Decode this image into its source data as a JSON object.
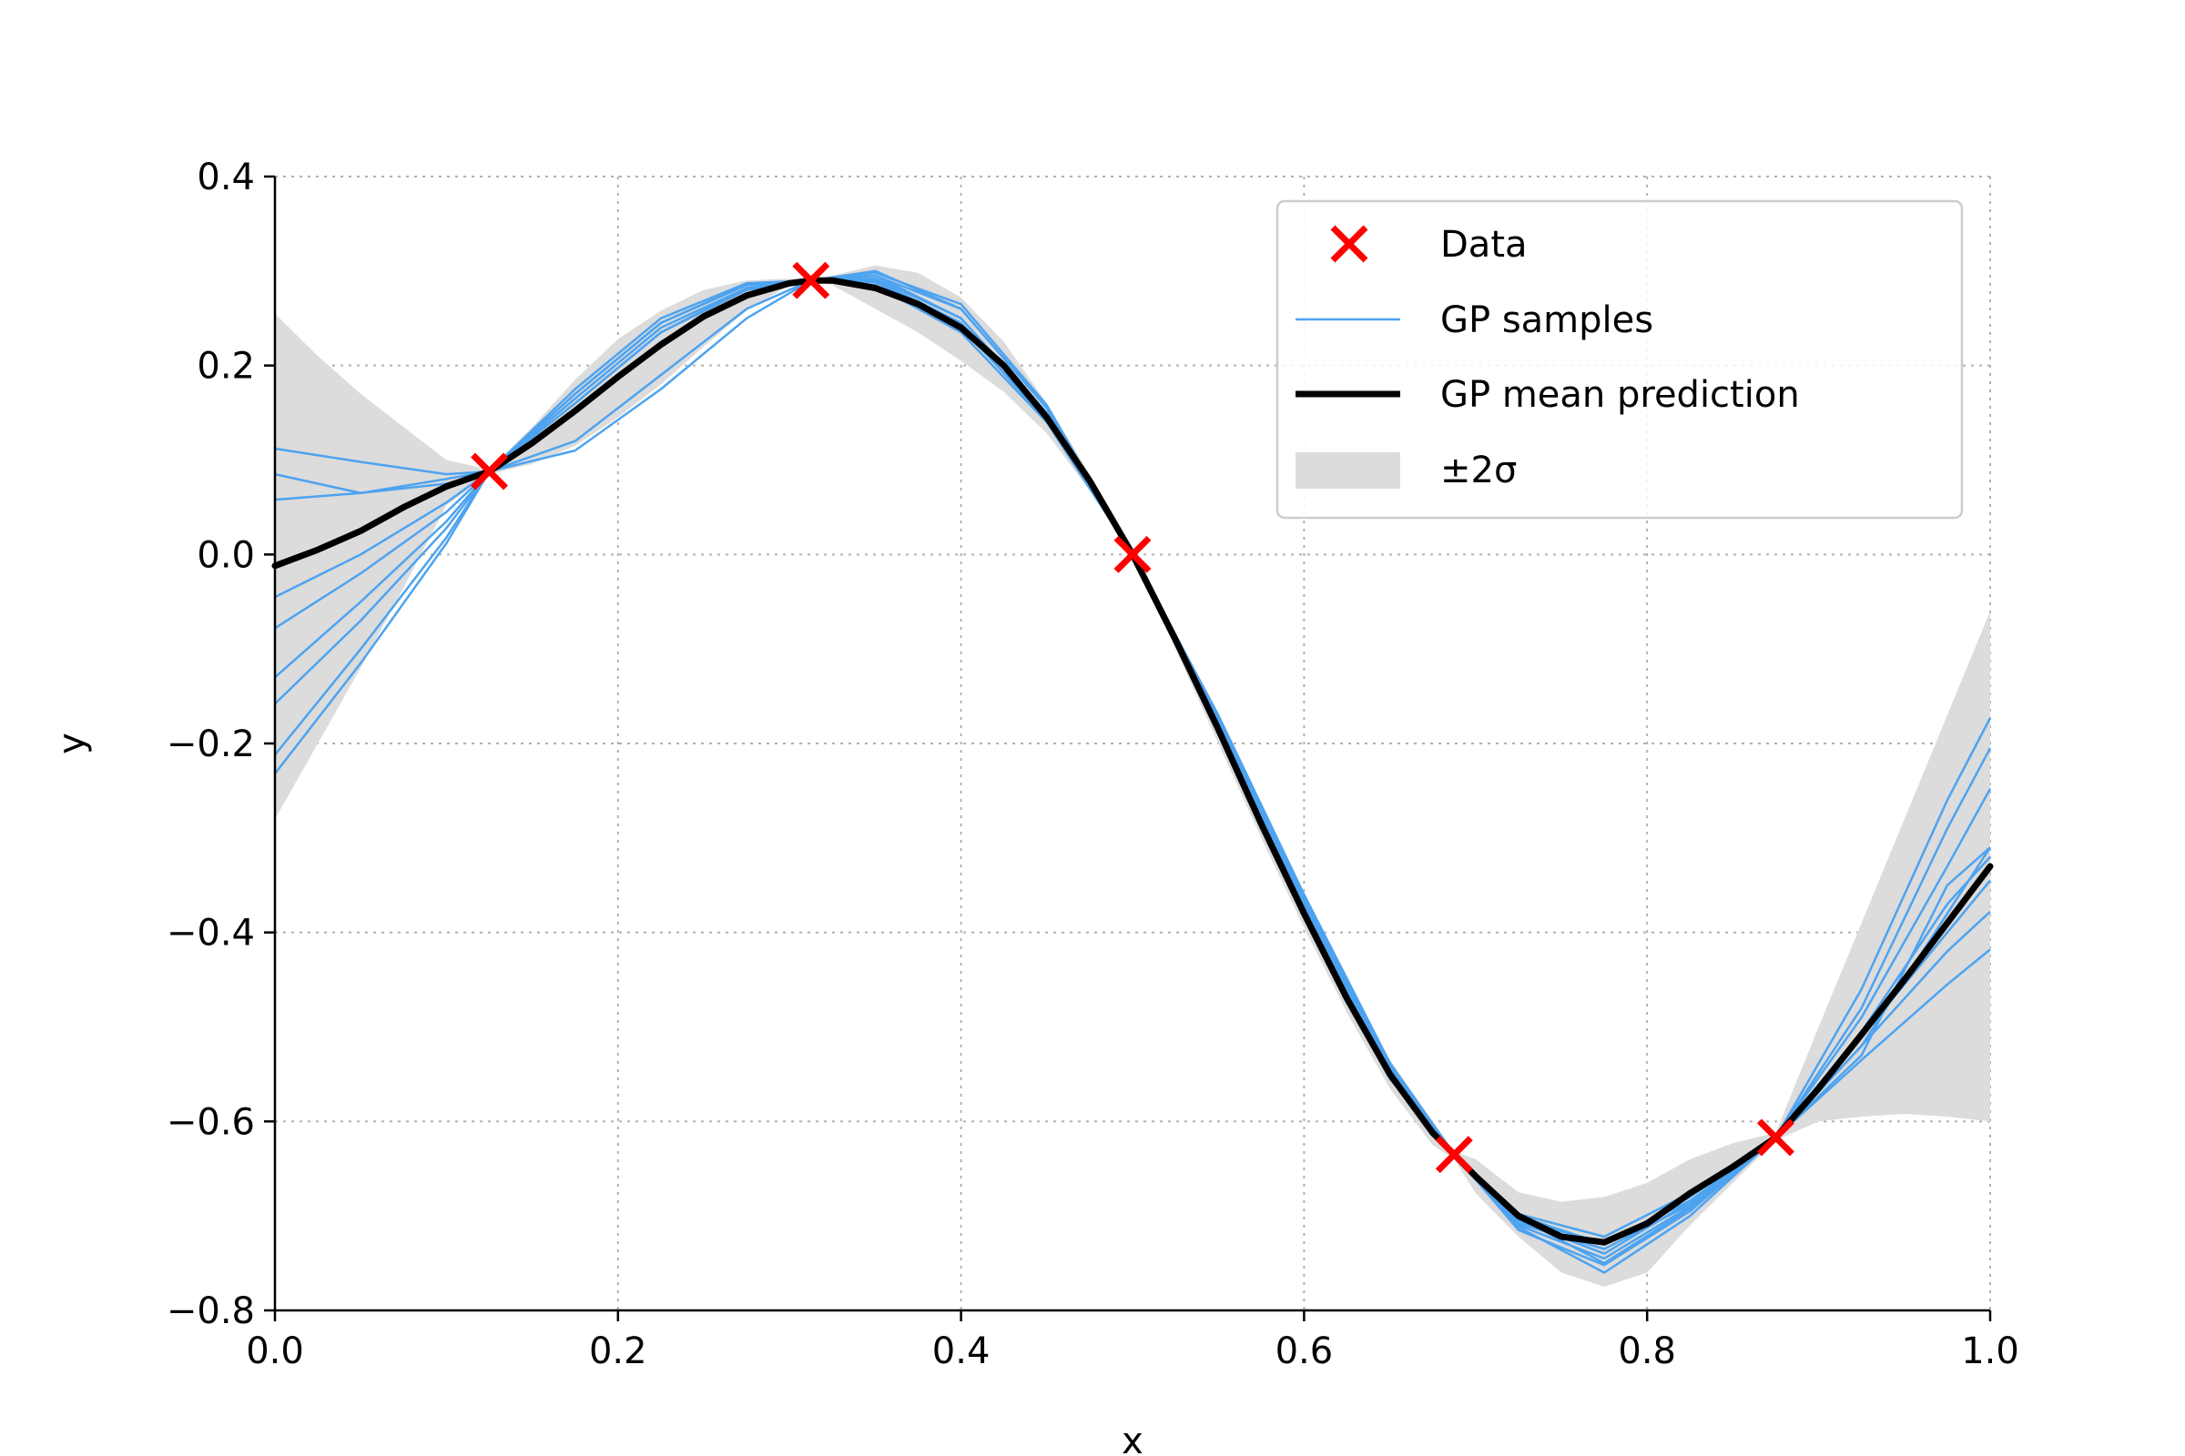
{
  "chart_data": {
    "type": "line",
    "xlabel": "x",
    "ylabel": "y",
    "xlim": [
      0.0,
      1.0
    ],
    "ylim": [
      -0.8,
      0.4
    ],
    "xticks": [
      0.0,
      0.2,
      0.4,
      0.6,
      0.8,
      1.0
    ],
    "xtick_labels": [
      "0.0",
      "0.2",
      "0.4",
      "0.6",
      "0.8",
      "1.0"
    ],
    "yticks": [
      -0.8,
      -0.6,
      -0.4,
      -0.2,
      0.0,
      0.2,
      0.4
    ],
    "ytick_labels": [
      "−0.8",
      "−0.6",
      "−0.4",
      "−0.2",
      "0.0",
      "0.2",
      "0.4"
    ],
    "grid": true,
    "legend_position": "top-right",
    "legend": {
      "data": "Data",
      "samples": "GP samples",
      "mean": "GP mean prediction",
      "band": "±2σ"
    },
    "colors": {
      "data": "#ff0000",
      "samples": "#4da3f0",
      "mean": "#000000",
      "band": "#dcdcdc",
      "grid": "#b0b0b0"
    },
    "data_points": [
      {
        "x": 0.125,
        "y": 0.088
      },
      {
        "x": 0.3125,
        "y": 0.29
      },
      {
        "x": 0.5,
        "y": 0.0
      },
      {
        "x": 0.6875,
        "y": -0.635
      },
      {
        "x": 0.875,
        "y": -0.617
      }
    ],
    "mean": {
      "x": [
        0.0,
        0.025,
        0.05,
        0.075,
        0.1,
        0.125,
        0.15,
        0.175,
        0.2,
        0.225,
        0.25,
        0.275,
        0.3,
        0.3125,
        0.325,
        0.35,
        0.375,
        0.4,
        0.425,
        0.45,
        0.475,
        0.5,
        0.525,
        0.55,
        0.575,
        0.6,
        0.625,
        0.65,
        0.675,
        0.6875,
        0.7,
        0.725,
        0.75,
        0.775,
        0.8,
        0.825,
        0.85,
        0.875,
        0.9,
        0.925,
        0.95,
        0.975,
        1.0
      ],
      "y": [
        -0.012,
        0.005,
        0.025,
        0.05,
        0.072,
        0.088,
        0.118,
        0.152,
        0.188,
        0.222,
        0.252,
        0.274,
        0.287,
        0.29,
        0.29,
        0.282,
        0.265,
        0.24,
        0.2,
        0.145,
        0.078,
        0.0,
        -0.09,
        -0.185,
        -0.285,
        -0.38,
        -0.47,
        -0.55,
        -0.612,
        -0.635,
        -0.658,
        -0.7,
        -0.722,
        -0.728,
        -0.708,
        -0.676,
        -0.648,
        -0.617,
        -0.565,
        -0.508,
        -0.45,
        -0.39,
        -0.33
      ]
    },
    "band": {
      "x": [
        0.0,
        0.025,
        0.05,
        0.075,
        0.1,
        0.125,
        0.15,
        0.175,
        0.2,
        0.225,
        0.25,
        0.275,
        0.3,
        0.3125,
        0.325,
        0.35,
        0.375,
        0.4,
        0.425,
        0.45,
        0.475,
        0.5,
        0.525,
        0.55,
        0.575,
        0.6,
        0.625,
        0.65,
        0.675,
        0.6875,
        0.7,
        0.725,
        0.75,
        0.775,
        0.8,
        0.825,
        0.85,
        0.875,
        0.9,
        0.925,
        0.95,
        0.975,
        1.0
      ],
      "upper": [
        0.255,
        0.21,
        0.17,
        0.135,
        0.1,
        0.09,
        0.135,
        0.185,
        0.228,
        0.258,
        0.28,
        0.29,
        0.292,
        0.29,
        0.295,
        0.306,
        0.298,
        0.272,
        0.225,
        0.16,
        0.085,
        0.0,
        -0.082,
        -0.175,
        -0.272,
        -0.367,
        -0.455,
        -0.535,
        -0.6,
        -0.632,
        -0.64,
        -0.675,
        -0.685,
        -0.68,
        -0.665,
        -0.64,
        -0.623,
        -0.612,
        -0.5,
        -0.39,
        -0.28,
        -0.17,
        -0.06
      ],
      "lower": [
        -0.28,
        -0.2,
        -0.12,
        -0.035,
        0.052,
        0.085,
        0.096,
        0.115,
        0.145,
        0.18,
        0.22,
        0.258,
        0.285,
        0.29,
        0.285,
        0.26,
        0.235,
        0.205,
        0.172,
        0.128,
        0.068,
        0.0,
        -0.1,
        -0.2,
        -0.3,
        -0.395,
        -0.485,
        -0.565,
        -0.625,
        -0.64,
        -0.676,
        -0.722,
        -0.76,
        -0.775,
        -0.76,
        -0.71,
        -0.665,
        -0.62,
        -0.6,
        -0.595,
        -0.592,
        -0.595,
        -0.6
      ]
    },
    "samples": [
      {
        "x": [
          0.0,
          0.05,
          0.1,
          0.125,
          0.175,
          0.225,
          0.275,
          0.3125,
          0.35,
          0.4,
          0.45,
          0.5,
          0.55,
          0.6,
          0.65,
          0.6875,
          0.725,
          0.775,
          0.825,
          0.875,
          0.925,
          0.975,
          1.0
        ],
        "y": [
          0.112,
          0.098,
          0.085,
          0.088,
          0.17,
          0.245,
          0.285,
          0.29,
          0.295,
          0.25,
          0.15,
          0.0,
          -0.18,
          -0.37,
          -0.545,
          -0.635,
          -0.705,
          -0.74,
          -0.685,
          -0.617,
          -0.52,
          -0.38,
          -0.31
        ]
      },
      {
        "x": [
          0.0,
          0.05,
          0.1,
          0.125,
          0.175,
          0.225,
          0.275,
          0.3125,
          0.35,
          0.4,
          0.45,
          0.5,
          0.55,
          0.6,
          0.65,
          0.6875,
          0.725,
          0.775,
          0.825,
          0.875,
          0.925,
          0.975,
          1.0
        ],
        "y": [
          0.085,
          0.065,
          0.075,
          0.088,
          0.165,
          0.24,
          0.282,
          0.29,
          0.29,
          0.245,
          0.148,
          0.0,
          -0.182,
          -0.372,
          -0.548,
          -0.635,
          -0.71,
          -0.745,
          -0.69,
          -0.617,
          -0.535,
          -0.455,
          -0.418
        ]
      },
      {
        "x": [
          0.0,
          0.05,
          0.1,
          0.125,
          0.175,
          0.225,
          0.275,
          0.3125,
          0.35,
          0.4,
          0.45,
          0.5,
          0.55,
          0.6,
          0.65,
          0.6875,
          0.725,
          0.775,
          0.825,
          0.875,
          0.925,
          0.975,
          1.0
        ],
        "y": [
          0.058,
          0.065,
          0.08,
          0.088,
          0.16,
          0.235,
          0.28,
          0.29,
          0.3,
          0.26,
          0.155,
          0.0,
          -0.19,
          -0.38,
          -0.555,
          -0.635,
          -0.715,
          -0.752,
          -0.695,
          -0.617,
          -0.52,
          -0.42,
          -0.378
        ]
      },
      {
        "x": [
          0.0,
          0.05,
          0.1,
          0.125,
          0.175,
          0.225,
          0.275,
          0.3125,
          0.35,
          0.4,
          0.45,
          0.5,
          0.55,
          0.6,
          0.65,
          0.6875,
          0.725,
          0.775,
          0.825,
          0.875,
          0.925,
          0.975,
          1.0
        ],
        "y": [
          -0.045,
          0.0,
          0.055,
          0.088,
          0.15,
          0.225,
          0.275,
          0.29,
          0.29,
          0.24,
          0.145,
          0.0,
          -0.175,
          -0.365,
          -0.54,
          -0.635,
          -0.7,
          -0.73,
          -0.68,
          -0.617,
          -0.49,
          -0.33,
          -0.248
        ]
      },
      {
        "x": [
          0.0,
          0.05,
          0.1,
          0.125,
          0.175,
          0.225,
          0.275,
          0.3125,
          0.35,
          0.4,
          0.45,
          0.5,
          0.55,
          0.6,
          0.65,
          0.6875,
          0.725,
          0.775,
          0.825,
          0.875,
          0.925,
          0.975,
          1.0
        ],
        "y": [
          -0.078,
          -0.02,
          0.045,
          0.088,
          0.175,
          0.25,
          0.287,
          0.29,
          0.285,
          0.235,
          0.14,
          0.0,
          -0.17,
          -0.36,
          -0.538,
          -0.635,
          -0.698,
          -0.722,
          -0.676,
          -0.617,
          -0.48,
          -0.29,
          -0.205
        ]
      },
      {
        "x": [
          0.0,
          0.05,
          0.1,
          0.125,
          0.175,
          0.225,
          0.275,
          0.3125,
          0.35,
          0.4,
          0.45,
          0.5,
          0.55,
          0.6,
          0.65,
          0.6875,
          0.725,
          0.775,
          0.825,
          0.875,
          0.925,
          0.975,
          1.0
        ],
        "y": [
          -0.13,
          -0.05,
          0.035,
          0.088,
          0.12,
          0.19,
          0.26,
          0.29,
          0.295,
          0.26,
          0.155,
          0.0,
          -0.185,
          -0.375,
          -0.55,
          -0.635,
          -0.708,
          -0.735,
          -0.688,
          -0.617,
          -0.46,
          -0.26,
          -0.173
        ]
      },
      {
        "x": [
          0.0,
          0.05,
          0.1,
          0.125,
          0.175,
          0.225,
          0.275,
          0.3125,
          0.35,
          0.4,
          0.45,
          0.5,
          0.55,
          0.6,
          0.65,
          0.6875,
          0.725,
          0.775,
          0.825,
          0.875,
          0.925,
          0.975,
          1.0
        ],
        "y": [
          -0.158,
          -0.07,
          0.028,
          0.088,
          0.11,
          0.175,
          0.25,
          0.29,
          0.298,
          0.265,
          0.158,
          0.0,
          -0.188,
          -0.378,
          -0.552,
          -0.635,
          -0.712,
          -0.76,
          -0.7,
          -0.617,
          -0.53,
          -0.35,
          -0.31
        ]
      },
      {
        "x": [
          0.0,
          0.05,
          0.1,
          0.125,
          0.175,
          0.225,
          0.275,
          0.3125,
          0.35,
          0.4,
          0.45,
          0.5,
          0.55,
          0.6,
          0.65,
          0.6875,
          0.725,
          0.775,
          0.825,
          0.875,
          0.925,
          0.975,
          1.0
        ],
        "y": [
          -0.212,
          -0.1,
          0.018,
          0.088,
          0.16,
          0.235,
          0.282,
          0.29,
          0.292,
          0.25,
          0.148,
          0.0,
          -0.18,
          -0.37,
          -0.545,
          -0.635,
          -0.705,
          -0.728,
          -0.684,
          -0.617,
          -0.505,
          -0.37,
          -0.32
        ]
      },
      {
        "x": [
          0.0,
          0.05,
          0.1,
          0.125,
          0.175,
          0.225,
          0.275,
          0.3125,
          0.35,
          0.4,
          0.45,
          0.5,
          0.55,
          0.6,
          0.65,
          0.6875,
          0.725,
          0.775,
          0.825,
          0.875,
          0.925,
          0.975,
          1.0
        ],
        "y": [
          -0.232,
          -0.115,
          0.012,
          0.088,
          0.17,
          0.245,
          0.286,
          0.29,
          0.288,
          0.242,
          0.142,
          0.0,
          -0.176,
          -0.366,
          -0.542,
          -0.635,
          -0.702,
          -0.75,
          -0.692,
          -0.617,
          -0.51,
          -0.4,
          -0.345
        ]
      }
    ]
  }
}
